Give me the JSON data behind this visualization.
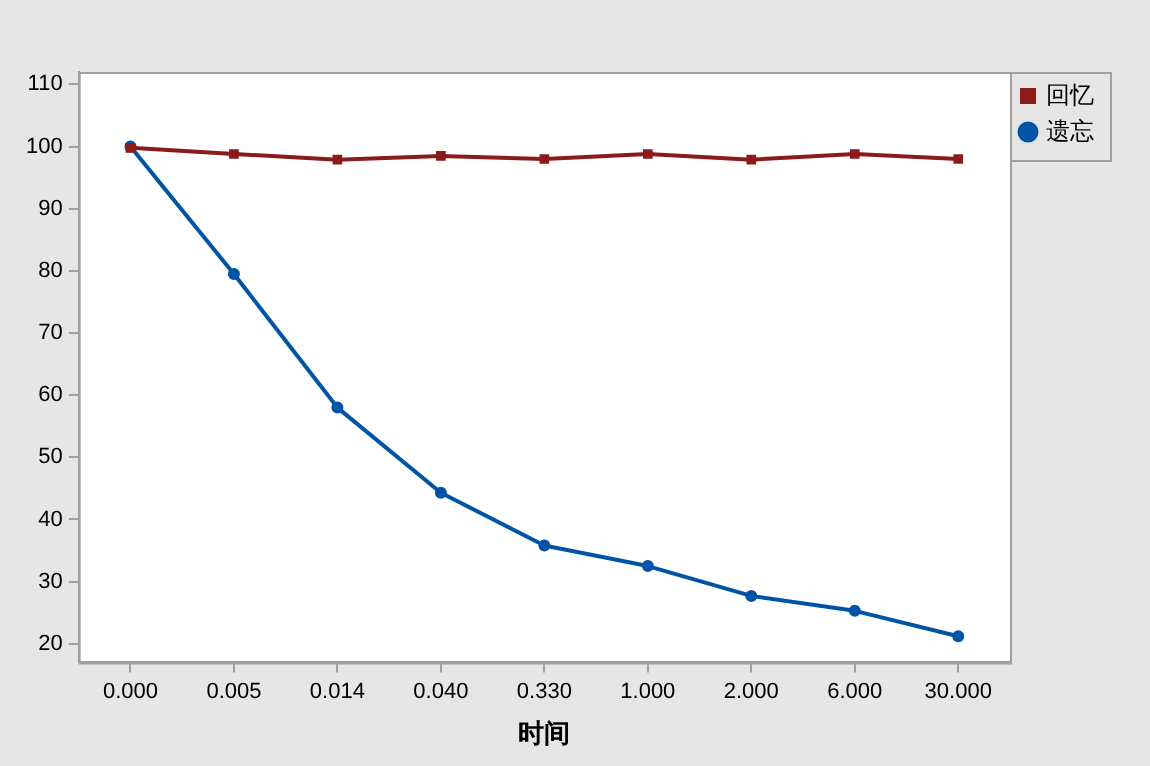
{
  "chart_data": {
    "type": "line",
    "xlabel": "时间",
    "categories": [
      "0.000",
      "0.005",
      "0.014",
      "0.040",
      "0.330",
      "1.000",
      "2.000",
      "6.000",
      "30.000"
    ],
    "series": [
      {
        "name": "遗忘",
        "color": "#0054a6",
        "marker": "circle",
        "values": [
          100,
          79.5,
          58,
          44.3,
          35.8,
          32.5,
          27.7,
          25.3,
          21.2
        ]
      },
      {
        "name": "回忆",
        "color": "#8b1a1a",
        "marker": "square",
        "values": [
          99.8,
          98.8,
          97.9,
          98.5,
          98,
          98.8,
          97.9,
          98.8,
          98
        ]
      }
    ],
    "ylim": [
      17,
      112
    ],
    "yticks": [
      20,
      30,
      40,
      50,
      60,
      70,
      80,
      90,
      100,
      110
    ],
    "grid": false,
    "legend": "top right",
    "line_style": "solid"
  }
}
